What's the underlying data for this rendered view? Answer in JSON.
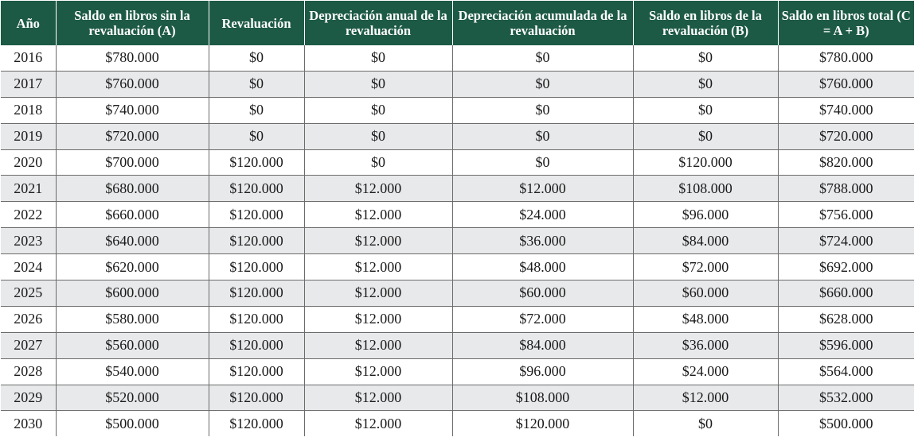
{
  "table": {
    "headers": [
      "Año",
      "Saldo en libros sin la revaluación (A)",
      "Revaluación",
      "Depreciación anual de la revaluación",
      "Depreciación acumulada de la revaluación",
      "Saldo en libros de la revaluación (B)",
      "Saldo en libros total (C = A + B)"
    ],
    "header_color": "#1d5a45",
    "stripe_color": "#e8e9eb",
    "rows": [
      [
        "2016",
        "$780.000",
        "$0",
        "$0",
        "$0",
        "$0",
        "$780.000"
      ],
      [
        "2017",
        "$760.000",
        "$0",
        "$0",
        "$0",
        "$0",
        "$760.000"
      ],
      [
        "2018",
        "$740.000",
        "$0",
        "$0",
        "$0",
        "$0",
        "$740.000"
      ],
      [
        "2019",
        "$720.000",
        "$0",
        "$0",
        "$0",
        "$0",
        "$720.000"
      ],
      [
        "2020",
        "$700.000",
        "$120.000",
        "$0",
        "$0",
        "$120.000",
        "$820.000"
      ],
      [
        "2021",
        "$680.000",
        "$120.000",
        "$12.000",
        "$12.000",
        "$108.000",
        "$788.000"
      ],
      [
        "2022",
        "$660.000",
        "$120.000",
        "$12.000",
        "$24.000",
        "$96.000",
        "$756.000"
      ],
      [
        "2023",
        "$640.000",
        "$120.000",
        "$12.000",
        "$36.000",
        "$84.000",
        "$724.000"
      ],
      [
        "2024",
        "$620.000",
        "$120.000",
        "$12.000",
        "$48.000",
        "$72.000",
        "$692.000"
      ],
      [
        "2025",
        "$600.000",
        "$120.000",
        "$12.000",
        "$60.000",
        "$60.000",
        "$660.000"
      ],
      [
        "2026",
        "$580.000",
        "$120.000",
        "$12.000",
        "$72.000",
        "$48.000",
        "$628.000"
      ],
      [
        "2027",
        "$560.000",
        "$120.000",
        "$12.000",
        "$84.000",
        "$36.000",
        "$596.000"
      ],
      [
        "2028",
        "$540.000",
        "$120.000",
        "$12.000",
        "$96.000",
        "$24.000",
        "$564.000"
      ],
      [
        "2029",
        "$520.000",
        "$120.000",
        "$12.000",
        "$108.000",
        "$12.000",
        "$532.000"
      ],
      [
        "2030",
        "$500.000",
        "$120.000",
        "$12.000",
        "$120.000",
        "$0",
        "$500.000"
      ]
    ]
  }
}
